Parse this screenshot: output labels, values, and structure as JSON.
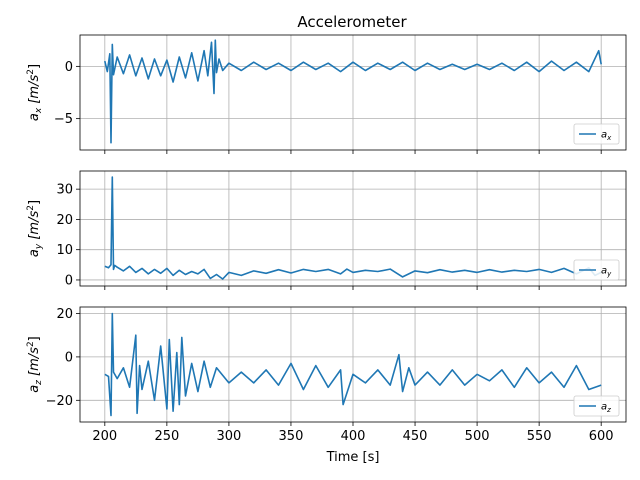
{
  "title": "Accelerometer",
  "series_color": "#1f77b4",
  "chart_data": [
    {
      "type": "line",
      "series": [
        {
          "name": "a_x",
          "label_base": "a",
          "label_sub": "x"
        }
      ],
      "ylabel_base": "a",
      "ylabel_sub": "x",
      "ylabel_unit_pre": "[m/s",
      "ylabel_unit_post": "]",
      "xlim": [
        180,
        620
      ],
      "ylim": [
        -8,
        3
      ],
      "yticks": [
        -5,
        0
      ],
      "grid": true,
      "legend": "lower-right",
      "x": [
        200,
        202,
        204,
        205,
        206,
        207,
        210,
        215,
        220,
        225,
        230,
        235,
        240,
        245,
        250,
        255,
        260,
        265,
        270,
        275,
        280,
        283,
        286,
        288,
        289,
        290,
        292,
        295,
        300,
        310,
        320,
        330,
        340,
        350,
        360,
        370,
        380,
        390,
        400,
        410,
        420,
        430,
        440,
        450,
        460,
        470,
        480,
        490,
        500,
        510,
        520,
        530,
        540,
        550,
        560,
        570,
        580,
        590,
        598,
        600
      ],
      "values": [
        0.5,
        -0.5,
        1.2,
        -7.3,
        2.1,
        -0.8,
        0.9,
        -0.7,
        1.1,
        -0.9,
        0.8,
        -1.2,
        0.7,
        -0.9,
        0.6,
        -1.5,
        0.9,
        -1.1,
        1.3,
        -1.4,
        1.5,
        -0.9,
        2.3,
        -2.6,
        2.5,
        -0.6,
        0.7,
        -0.4,
        0.3,
        -0.4,
        0.4,
        -0.3,
        0.3,
        -0.4,
        0.4,
        -0.3,
        0.3,
        -0.5,
        0.4,
        -0.4,
        0.3,
        -0.3,
        0.4,
        -0.4,
        0.3,
        -0.3,
        0.2,
        -0.3,
        0.2,
        -0.3,
        0.3,
        -0.4,
        0.4,
        -0.5,
        0.5,
        -0.4,
        0.4,
        -0.5,
        1.5,
        0.2
      ]
    },
    {
      "type": "line",
      "series": [
        {
          "name": "a_y",
          "label_base": "a",
          "label_sub": "y"
        }
      ],
      "ylabel_base": "a",
      "ylabel_sub": "y",
      "ylabel_unit_pre": "[m/s",
      "ylabel_unit_post": "]",
      "xlim": [
        180,
        620
      ],
      "ylim": [
        -2,
        36
      ],
      "yticks": [
        0,
        10,
        20,
        30
      ],
      "grid": true,
      "legend": "lower-right",
      "x": [
        200,
        203,
        205,
        206,
        207,
        208,
        210,
        215,
        220,
        225,
        230,
        235,
        240,
        245,
        250,
        255,
        260,
        265,
        270,
        275,
        280,
        285,
        290,
        295,
        300,
        310,
        320,
        330,
        340,
        350,
        360,
        370,
        380,
        390,
        395,
        400,
        410,
        420,
        430,
        440,
        450,
        460,
        470,
        480,
        490,
        500,
        510,
        520,
        530,
        540,
        550,
        560,
        570,
        580,
        590,
        595,
        600
      ],
      "values": [
        4.5,
        4.0,
        5.0,
        34,
        3.5,
        4.8,
        4.2,
        3.0,
        4.5,
        2.5,
        3.8,
        2.0,
        3.5,
        2.2,
        3.8,
        1.5,
        3.2,
        1.8,
        2.8,
        2.0,
        3.5,
        0.5,
        1.8,
        0.3,
        2.5,
        1.5,
        3.0,
        2.2,
        3.4,
        2.3,
        3.5,
        2.8,
        3.5,
        2.0,
        3.6,
        2.5,
        3.2,
        2.8,
        3.6,
        1.0,
        3.0,
        2.4,
        3.4,
        2.6,
        3.2,
        2.5,
        3.4,
        2.6,
        3.2,
        2.8,
        3.5,
        2.5,
        3.8,
        2.0,
        4.0,
        1.5,
        2.5
      ]
    },
    {
      "type": "line",
      "series": [
        {
          "name": "a_z",
          "label_base": "a",
          "label_sub": "z"
        }
      ],
      "ylabel_base": "a",
      "ylabel_sub": "z",
      "ylabel_unit_pre": "[m/s",
      "ylabel_unit_post": "]",
      "xlim": [
        180,
        620
      ],
      "ylim": [
        -30,
        23
      ],
      "yticks": [
        -20,
        0,
        20
      ],
      "grid": true,
      "legend": "lower-right",
      "xlabel": "Time [s]",
      "xticks": [
        200,
        250,
        300,
        350,
        400,
        450,
        500,
        550,
        600
      ],
      "x": [
        200,
        203,
        205,
        206,
        207,
        210,
        215,
        220,
        225,
        226,
        228,
        230,
        235,
        240,
        245,
        250,
        252,
        255,
        258,
        260,
        262,
        265,
        270,
        275,
        280,
        285,
        290,
        300,
        310,
        320,
        330,
        340,
        350,
        360,
        370,
        380,
        390,
        392,
        400,
        410,
        420,
        430,
        437,
        440,
        445,
        450,
        460,
        470,
        480,
        490,
        500,
        510,
        520,
        530,
        540,
        550,
        560,
        570,
        580,
        590,
        600
      ],
      "values": [
        -8,
        -9,
        -27,
        20,
        -7,
        -10,
        -5,
        -14,
        10,
        -26,
        -4,
        -15,
        -2,
        -20,
        5,
        -24,
        8,
        -25,
        2,
        -22,
        9,
        -18,
        -3,
        -16,
        -2,
        -14,
        -5,
        -12,
        -7,
        -12,
        -6,
        -13,
        -3,
        -15,
        -4,
        -14,
        -6,
        -22,
        -8,
        -12,
        -6,
        -13,
        1,
        -16,
        -5,
        -13,
        -7,
        -13,
        -6,
        -13,
        -8,
        -11,
        -6,
        -14,
        -5,
        -12,
        -7,
        -14,
        -4,
        -15,
        -13
      ]
    }
  ]
}
